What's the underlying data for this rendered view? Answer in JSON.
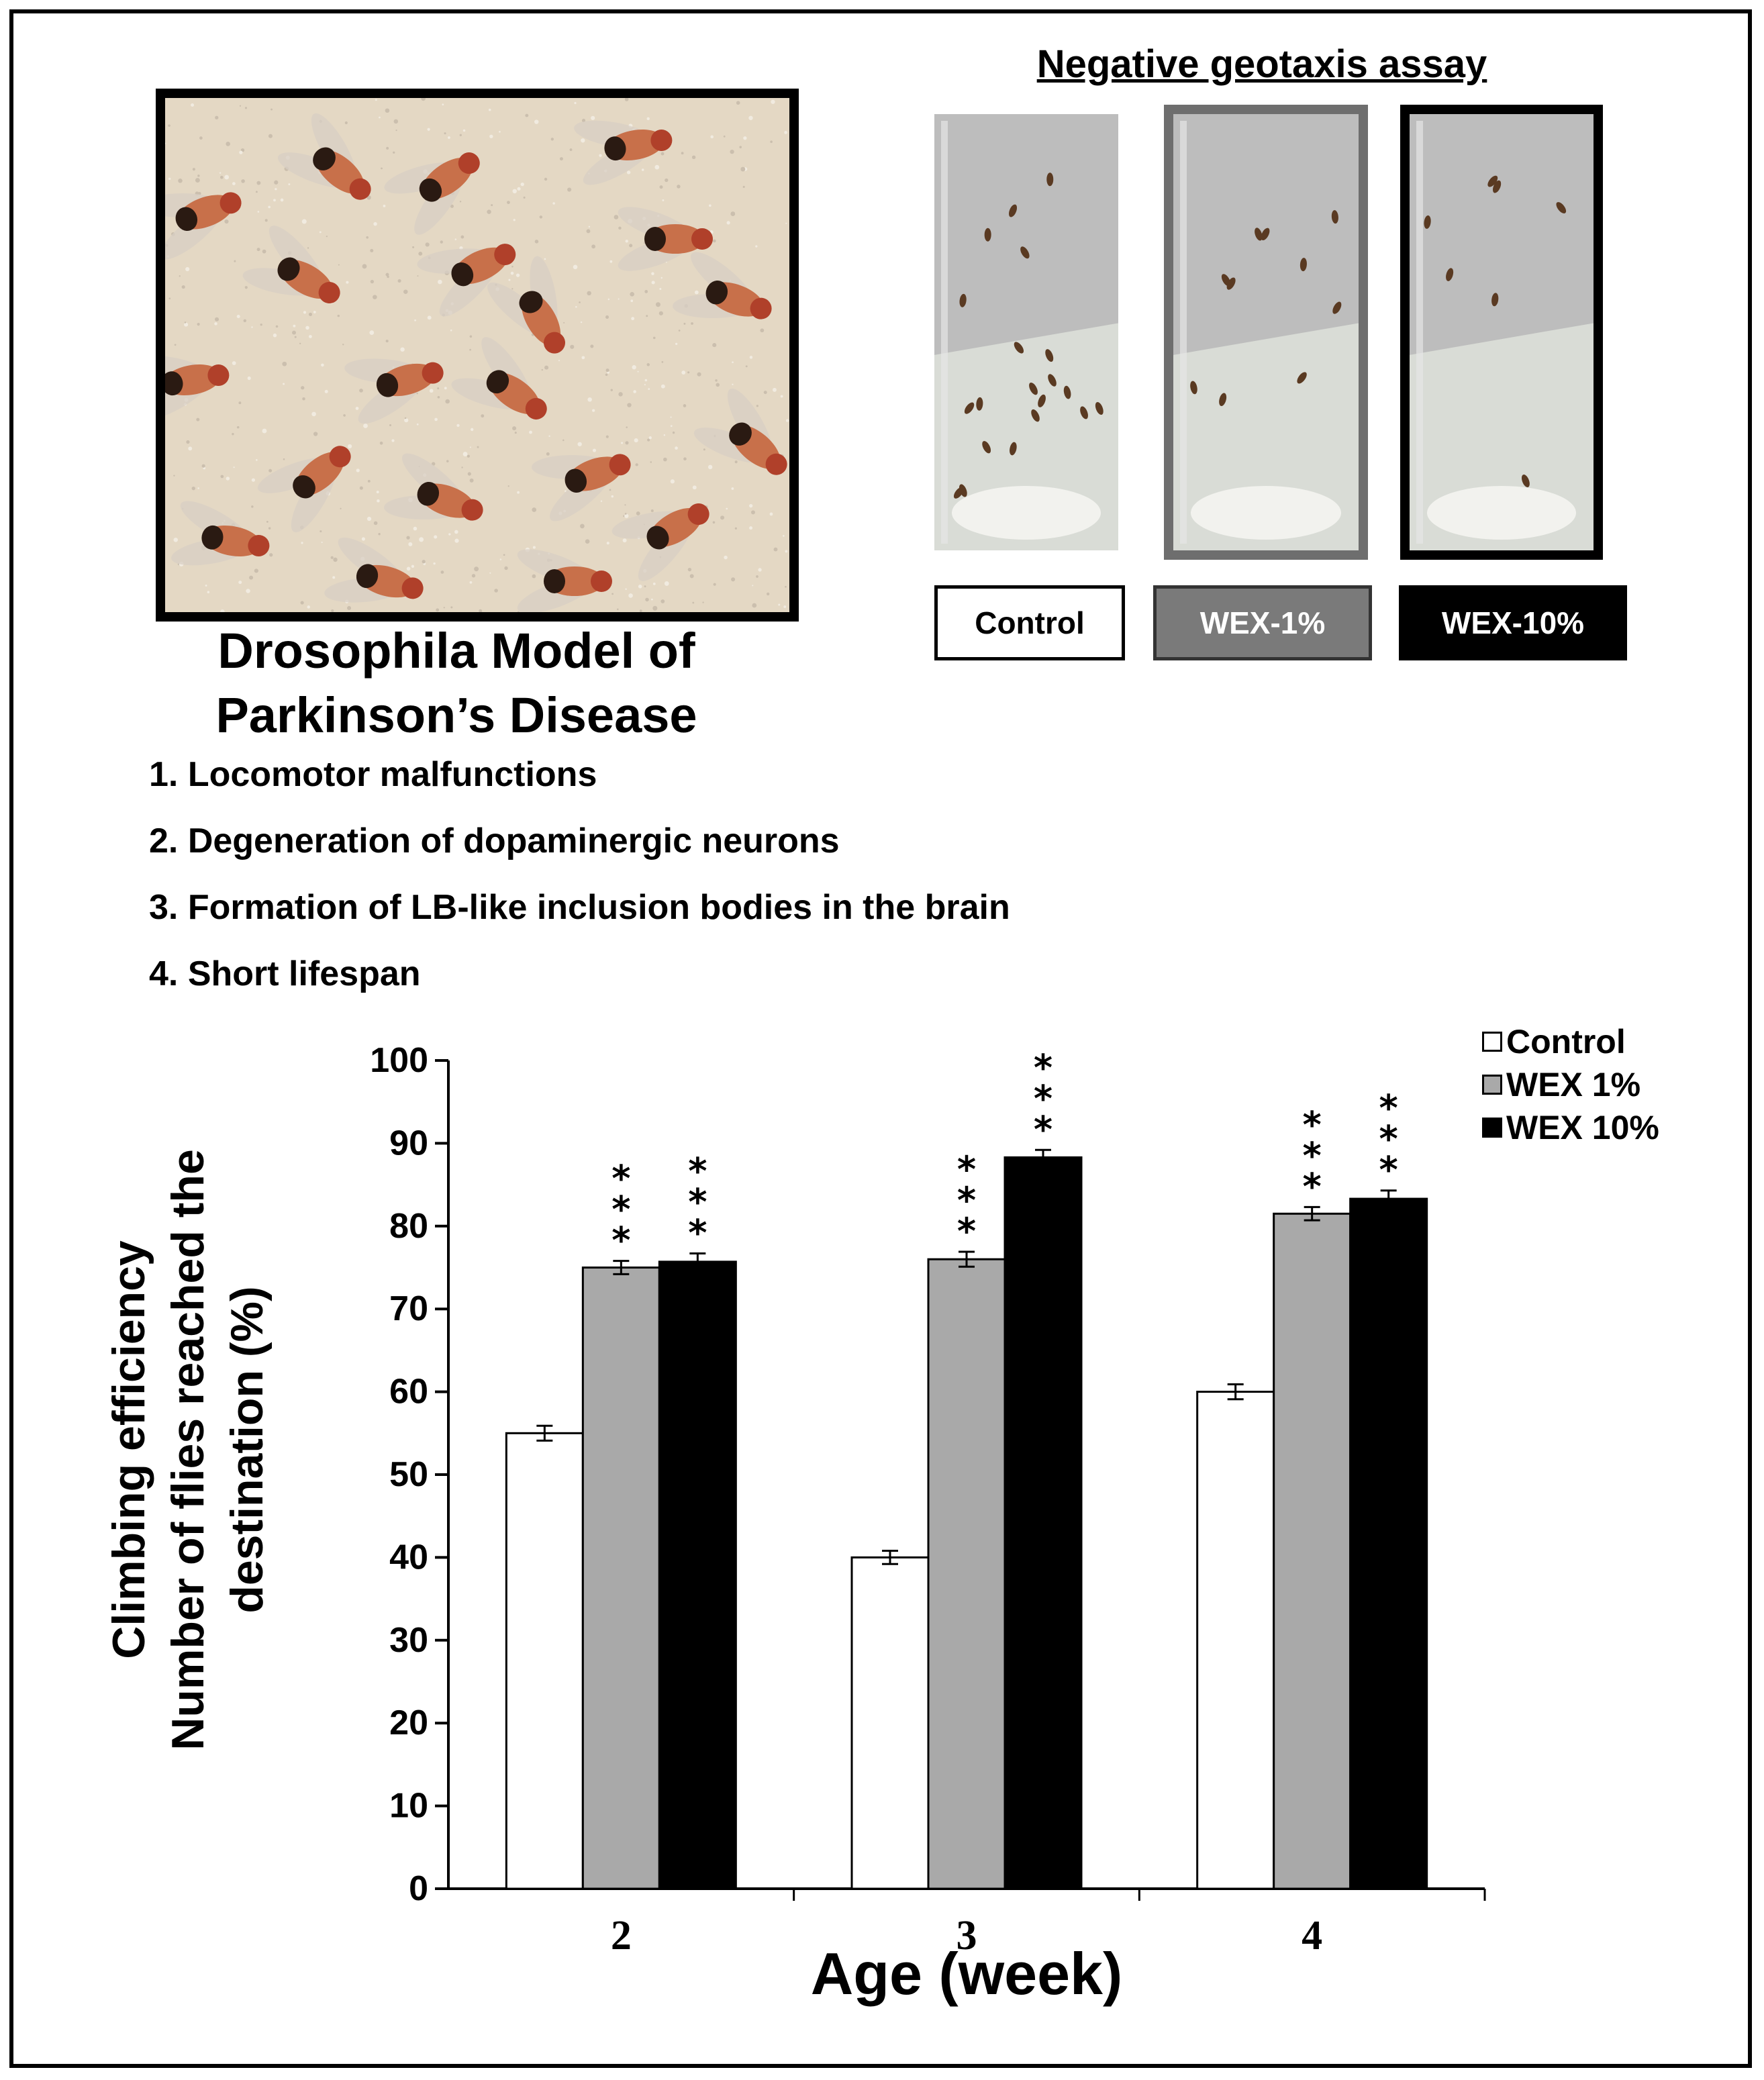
{
  "panel": {
    "photo_title_line1": "Drosophila Model of",
    "photo_title_line2": "Parkinson’s Disease",
    "features": [
      "1. Locomotor malfunctions",
      "2. Degeneration of dopaminergic neurons",
      "3. Formation of LB-like inclusion bodies in the brain",
      "4. Short lifespan"
    ]
  },
  "assay": {
    "title": "Negative geotaxis assay",
    "groups": [
      {
        "label": "Control",
        "frame_color": "#ffffff",
        "label_bg": "#ffffff",
        "label_fg": "#000000",
        "flies_near_top": 5,
        "flies_total": 20
      },
      {
        "label": "WEX-1%",
        "frame_color": "#6e6e6e",
        "label_bg": "#7a7a7a",
        "label_fg": "#ffffff",
        "flies_near_top": 7,
        "flies_total": 10
      },
      {
        "label": "WEX-10%",
        "frame_color": "#000000",
        "label_bg": "#000000",
        "label_fg": "#ffffff",
        "flies_near_top": 6,
        "flies_total": 7
      }
    ]
  },
  "chart_data": {
    "type": "bar",
    "xlabel": "Age (week)",
    "ylabel_line1": "Climbing efficiency",
    "ylabel_line2": "Number of flies reached the",
    "ylabel_line3": "destination (%)",
    "categories": [
      "2",
      "3",
      "4"
    ],
    "ylim": [
      0,
      100
    ],
    "yticks": [
      0,
      10,
      20,
      30,
      40,
      50,
      60,
      70,
      80,
      90,
      100
    ],
    "series": [
      {
        "name": "Control",
        "color": "#ffffff",
        "values": [
          55,
          40,
          60
        ],
        "errors": [
          0.9,
          0.8,
          0.9
        ],
        "significance": [
          "",
          "",
          ""
        ]
      },
      {
        "name": "WEX 1%",
        "color": "#a9a9a9",
        "values": [
          75,
          76,
          81.5
        ],
        "errors": [
          0.8,
          0.9,
          0.8
        ],
        "significance": [
          "***",
          "***",
          "***"
        ]
      },
      {
        "name": "WEX 10%",
        "color": "#000000",
        "values": [
          75.7,
          88.3,
          83.3
        ],
        "errors": [
          1.0,
          0.9,
          1.0
        ],
        "significance": [
          "***",
          "***",
          "***"
        ]
      }
    ],
    "legend_position": "top-right",
    "grid": false
  }
}
